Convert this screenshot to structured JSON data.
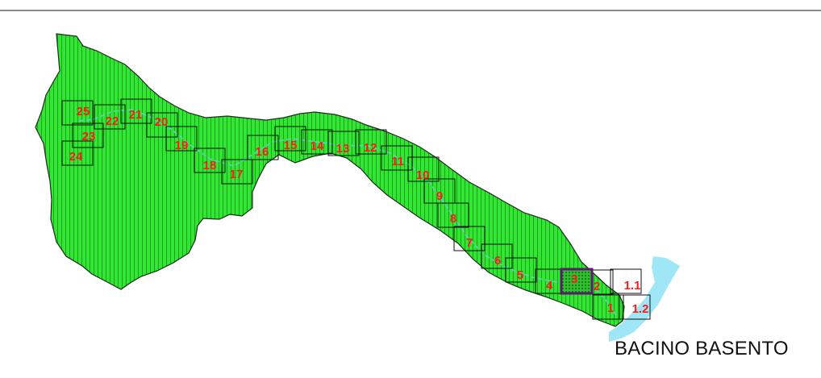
{
  "map": {
    "title": "BACINO BASENTO",
    "colors": {
      "basin_fill": "#33e633",
      "basin_hatch": "#1aa31a",
      "basin_outline": "#1e2a1e",
      "river": "#66cccc",
      "sea": "#9fe6f6",
      "tile_border": "#111111",
      "label": "#ff1a1a",
      "selected_tile": "#5a1a6e"
    },
    "tiles": [
      "25",
      "23",
      "24",
      "22",
      "21",
      "20",
      "19",
      "18",
      "17",
      "16",
      "15",
      "14",
      "13",
      "12",
      "11",
      "10",
      "9",
      "8",
      "7",
      "6",
      "5",
      "4",
      "3",
      "2",
      "1",
      "1.1",
      "1.2"
    ],
    "selected_tile": "3"
  }
}
